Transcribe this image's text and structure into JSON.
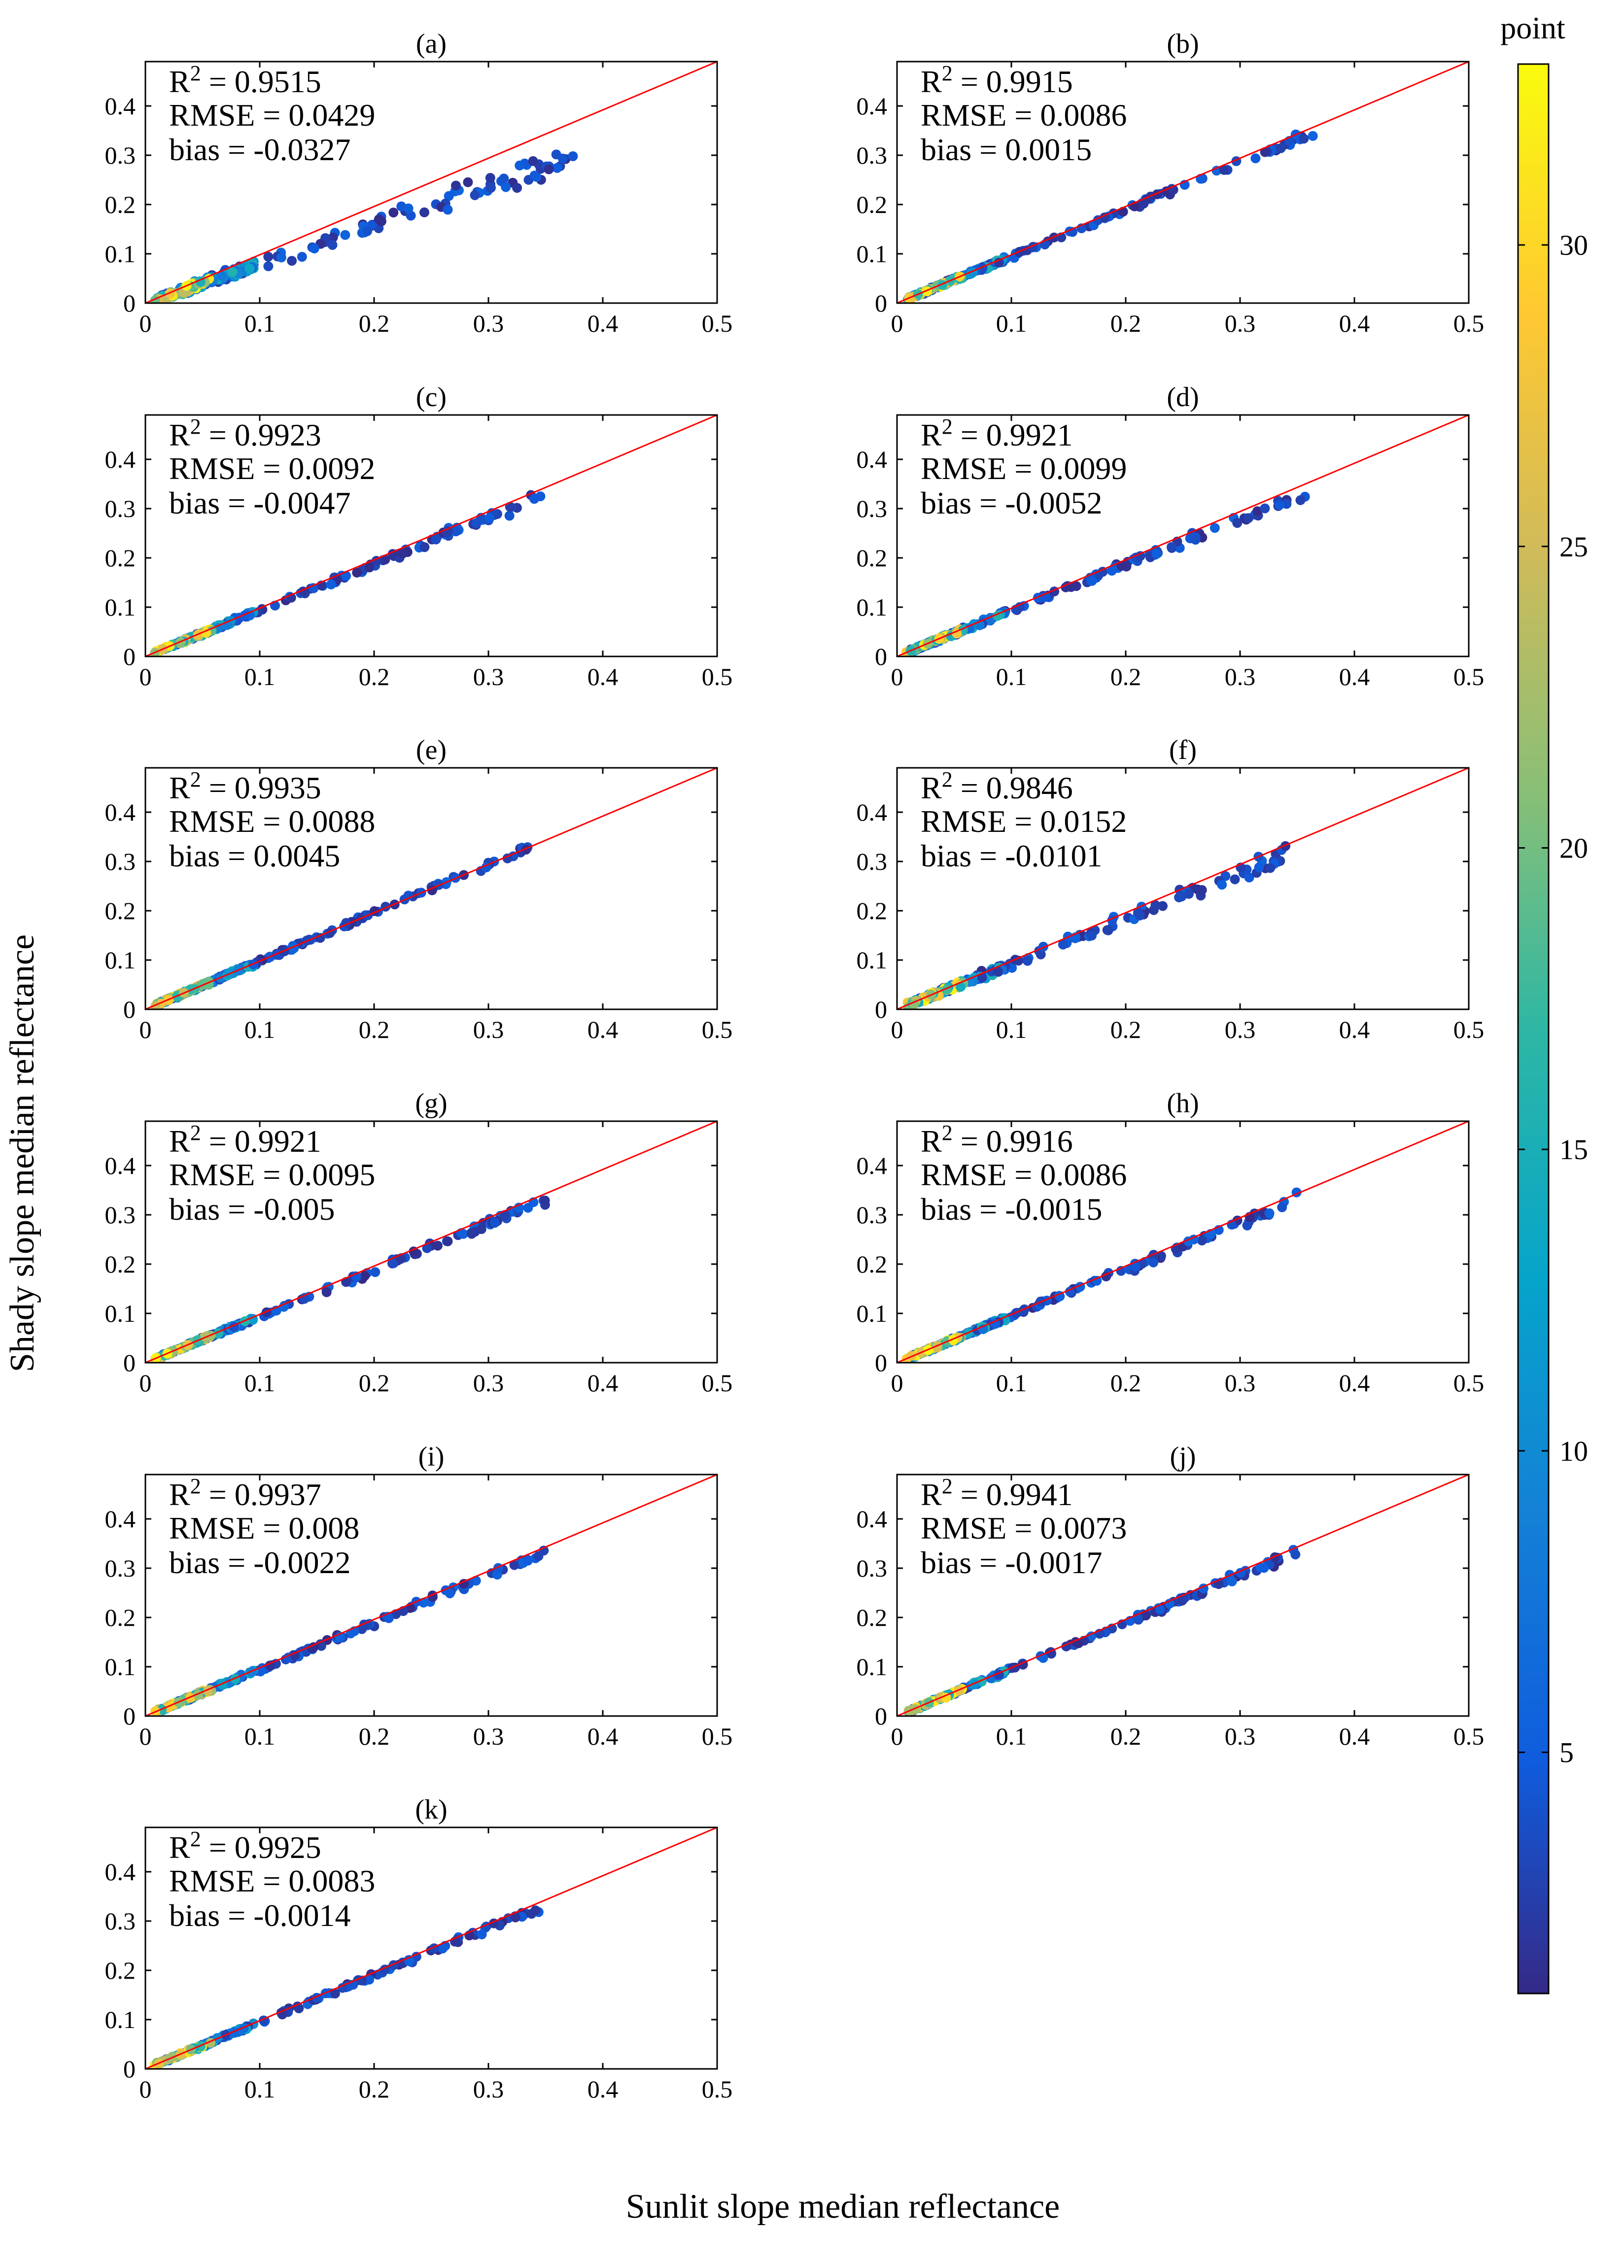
{
  "figure": {
    "xlabel": "Sunlit slope median reflectance",
    "ylabel": "Shady slope median reflectance"
  },
  "colorbar": {
    "title": "point",
    "ticks": [
      5,
      10,
      15,
      20,
      25,
      30
    ],
    "range": [
      1,
      33
    ],
    "colormap": "parula"
  },
  "colors": {
    "identity_line": "#ff0000",
    "axes": "#000000"
  },
  "chart_data": [
    {
      "type": "scatter",
      "title": "(a)",
      "r2": "0.9515",
      "rmse": "0.0429",
      "bias": "-0.0327",
      "slope": 0.8,
      "noise": 0.02,
      "xmax": 0.375,
      "xlim": [
        0,
        0.5
      ],
      "ylim": [
        0,
        0.49
      ],
      "xticks": [
        "0",
        "0.1",
        "0.2",
        "0.3",
        "0.4",
        "0.5"
      ],
      "yticks": [
        "0",
        "0.1",
        "0.2",
        "0.3",
        "0.4"
      ],
      "color_variable": "point",
      "identity_line": true
    },
    {
      "type": "scatter",
      "title": "(b)",
      "r2": "0.9915",
      "rmse": "0.0086",
      "bias": "0.0015",
      "slope": 0.95,
      "noise": 0.008,
      "xmax": 0.365,
      "xlim": [
        0,
        0.5
      ],
      "ylim": [
        0,
        0.49
      ],
      "xticks": [
        "0",
        "0.1",
        "0.2",
        "0.3",
        "0.4",
        "0.5"
      ],
      "yticks": [
        "0",
        "0.1",
        "0.2",
        "0.3",
        "0.4"
      ],
      "color_variable": "point",
      "identity_line": true
    },
    {
      "type": "scatter",
      "title": "(c)",
      "r2": "0.9923",
      "rmse": "0.0092",
      "bias": "-0.0047",
      "slope": 0.94,
      "noise": 0.008,
      "xmax": 0.35,
      "xlim": [
        0,
        0.5
      ],
      "ylim": [
        0,
        0.49
      ],
      "xticks": [
        "0",
        "0.1",
        "0.2",
        "0.3",
        "0.4",
        "0.5"
      ],
      "yticks": [
        "0",
        "0.1",
        "0.2",
        "0.3",
        "0.4"
      ],
      "color_variable": "point",
      "identity_line": true
    },
    {
      "type": "scatter",
      "title": "(d)",
      "r2": "0.9921",
      "rmse": "0.0099",
      "bias": "-0.0052",
      "slope": 0.93,
      "noise": 0.009,
      "xmax": 0.365,
      "xlim": [
        0,
        0.5
      ],
      "ylim": [
        0,
        0.49
      ],
      "xticks": [
        "0",
        "0.1",
        "0.2",
        "0.3",
        "0.4",
        "0.5"
      ],
      "yticks": [
        "0",
        "0.1",
        "0.2",
        "0.3",
        "0.4"
      ],
      "color_variable": "point",
      "identity_line": true
    },
    {
      "type": "scatter",
      "title": "(e)",
      "r2": "0.9935",
      "rmse": "0.0088",
      "bias": "0.0045",
      "slope": 0.98,
      "noise": 0.008,
      "xmax": 0.335,
      "xlim": [
        0,
        0.5
      ],
      "ylim": [
        0,
        0.49
      ],
      "xticks": [
        "0",
        "0.1",
        "0.2",
        "0.3",
        "0.4",
        "0.5"
      ],
      "yticks": [
        "0",
        "0.1",
        "0.2",
        "0.3",
        "0.4"
      ],
      "color_variable": "point",
      "identity_line": true
    },
    {
      "type": "scatter",
      "title": "(f)",
      "r2": "0.9846",
      "rmse": "0.0152",
      "bias": "-0.0101",
      "slope": 0.92,
      "noise": 0.014,
      "xmax": 0.34,
      "xlim": [
        0,
        0.5
      ],
      "ylim": [
        0,
        0.49
      ],
      "xticks": [
        "0",
        "0.1",
        "0.2",
        "0.3",
        "0.4",
        "0.5"
      ],
      "yticks": [
        "0",
        "0.1",
        "0.2",
        "0.3",
        "0.4"
      ],
      "color_variable": "point",
      "identity_line": true
    },
    {
      "type": "scatter",
      "title": "(g)",
      "r2": "0.9921",
      "rmse": "0.0095",
      "bias": "-0.005",
      "slope": 0.94,
      "noise": 0.008,
      "xmax": 0.35,
      "xlim": [
        0,
        0.5
      ],
      "ylim": [
        0,
        0.49
      ],
      "xticks": [
        "0",
        "0.1",
        "0.2",
        "0.3",
        "0.4",
        "0.5"
      ],
      "yticks": [
        "0",
        "0.1",
        "0.2",
        "0.3",
        "0.4"
      ],
      "color_variable": "point",
      "identity_line": true
    },
    {
      "type": "scatter",
      "title": "(h)",
      "r2": "0.9916",
      "rmse": "0.0086",
      "bias": "-0.0015",
      "slope": 0.95,
      "noise": 0.008,
      "xmax": 0.35,
      "xlim": [
        0,
        0.5
      ],
      "ylim": [
        0,
        0.49
      ],
      "xticks": [
        "0",
        "0.1",
        "0.2",
        "0.3",
        "0.4",
        "0.5"
      ],
      "yticks": [
        "0",
        "0.1",
        "0.2",
        "0.3",
        "0.4"
      ],
      "color_variable": "point",
      "identity_line": true
    },
    {
      "type": "scatter",
      "title": "(i)",
      "r2": "0.9937",
      "rmse": "0.008",
      "bias": "-0.0022",
      "slope": 0.95,
      "noise": 0.007,
      "xmax": 0.36,
      "xlim": [
        0,
        0.5
      ],
      "ylim": [
        0,
        0.49
      ],
      "xticks": [
        "0",
        "0.1",
        "0.2",
        "0.3",
        "0.4",
        "0.5"
      ],
      "yticks": [
        "0",
        "0.1",
        "0.2",
        "0.3",
        "0.4"
      ],
      "color_variable": "point",
      "identity_line": true
    },
    {
      "type": "scatter",
      "title": "(j)",
      "r2": "0.9941",
      "rmse": "0.0073",
      "bias": "-0.0017",
      "slope": 0.95,
      "noise": 0.007,
      "xmax": 0.35,
      "xlim": [
        0,
        0.5
      ],
      "ylim": [
        0,
        0.49
      ],
      "xticks": [
        "0",
        "0.1",
        "0.2",
        "0.3",
        "0.4",
        "0.5"
      ],
      "yticks": [
        "0",
        "0.1",
        "0.2",
        "0.3",
        "0.4"
      ],
      "color_variable": "point",
      "identity_line": true
    },
    {
      "type": "scatter",
      "title": "(k)",
      "r2": "0.9925",
      "rmse": "0.0083",
      "bias": "-0.0014",
      "slope": 0.95,
      "noise": 0.007,
      "xmax": 0.35,
      "xlim": [
        0,
        0.5
      ],
      "ylim": [
        0,
        0.49
      ],
      "xticks": [
        "0",
        "0.1",
        "0.2",
        "0.3",
        "0.4",
        "0.5"
      ],
      "yticks": [
        "0",
        "0.1",
        "0.2",
        "0.3",
        "0.4"
      ],
      "color_variable": "point",
      "identity_line": true
    }
  ]
}
